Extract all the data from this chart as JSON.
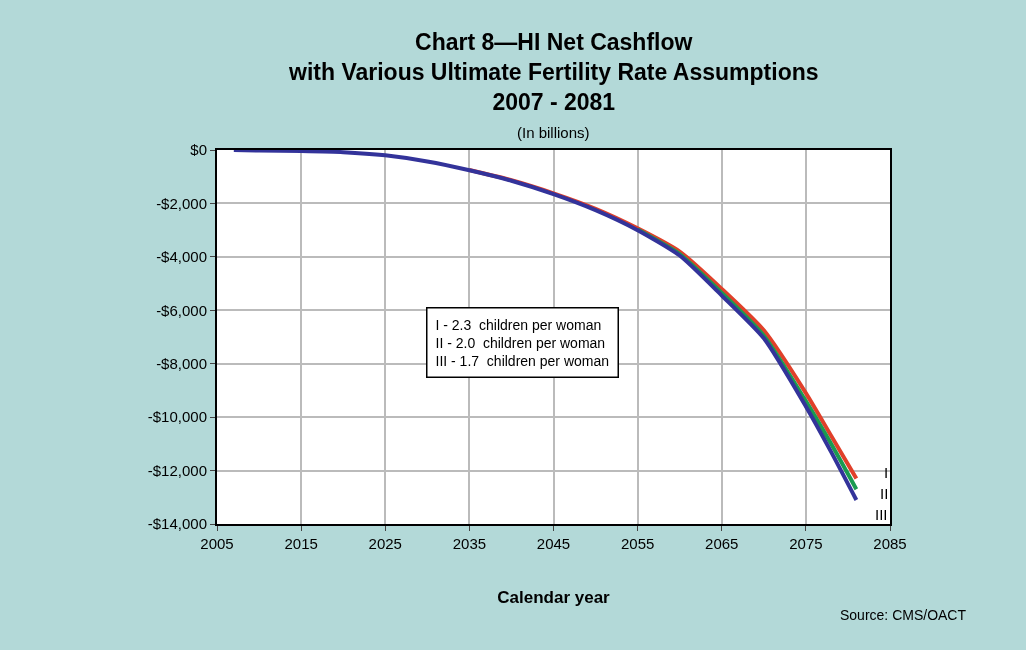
{
  "chart_data": {
    "type": "line",
    "title": "Chart 8—HI Net Cashflow\nwith Various Ultimate Fertility Rate Assumptions\n2007 - 2081",
    "subtitle": "(In billions)",
    "xlabel": "Calendar year",
    "annotations": [
      "I - 2.3  children per woman\nII - 2.0  children per woman\nIII - 1.7  children per woman",
      "Source: CMS/OACT"
    ],
    "x": [
      2007,
      2010,
      2015,
      2020,
      2025,
      2030,
      2035,
      2040,
      2045,
      2050,
      2055,
      2060,
      2065,
      2070,
      2075,
      2078,
      2081
    ],
    "series": [
      {
        "name": "I",
        "color": "#e0402a",
        "values": [
          null,
          null,
          null,
          null,
          null,
          null,
          -750,
          -1130,
          -1620,
          -2200,
          -2930,
          -3800,
          -5200,
          -6750,
          -9100,
          -10700,
          -12300
        ]
      },
      {
        "name": "II",
        "color": "#1a9a50",
        "values": [
          null,
          null,
          null,
          null,
          null,
          null,
          null,
          null,
          null,
          null,
          -2980,
          -3900,
          -5350,
          -6950,
          -9400,
          -11000,
          -12700
        ]
      },
      {
        "name": "III",
        "color": "#33339a",
        "values": [
          0,
          -20,
          -40,
          -80,
          -200,
          -430,
          -760,
          -1150,
          -1650,
          -2250,
          -3000,
          -3950,
          -5450,
          -7050,
          -9600,
          -11300,
          -13100
        ]
      }
    ],
    "xlim": [
      2005,
      2085
    ],
    "xticks": [
      2005,
      2015,
      2025,
      2035,
      2045,
      2055,
      2065,
      2075,
      2085
    ],
    "ylim": [
      -14000,
      0
    ],
    "yticks": [
      {
        "value": 0,
        "label": "$0"
      },
      {
        "value": -2000,
        "label": "-$2,000"
      },
      {
        "value": -4000,
        "label": "-$4,000"
      },
      {
        "value": -6000,
        "label": "-$6,000"
      },
      {
        "value": -8000,
        "label": "-$8,000"
      },
      {
        "value": -10000,
        "label": "-$10,000"
      },
      {
        "value": -12000,
        "label": "-$12,000"
      },
      {
        "value": -14000,
        "label": "-$14,000"
      }
    ],
    "grid": true,
    "legend": false,
    "marker": "none",
    "line_style": "solid"
  }
}
